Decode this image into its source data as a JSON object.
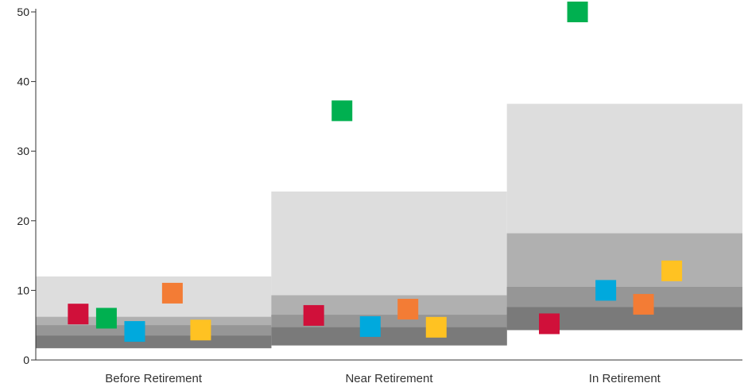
{
  "chart_data": {
    "type": "scatter",
    "categories": [
      "Before Retirement",
      "Near Retirement",
      "In Retirement"
    ],
    "ylim": [
      0,
      50
    ],
    "y_ticks": [
      0,
      10,
      20,
      30,
      40,
      50
    ],
    "grid": false,
    "legend": "none",
    "bands": [
      {
        "category": "Before Retirement",
        "levels": [
          1.7,
          3.5,
          5.0,
          6.2,
          12.0
        ]
      },
      {
        "category": "Near Retirement",
        "levels": [
          2.1,
          4.7,
          6.5,
          9.3,
          24.2
        ]
      },
      {
        "category": "In Retirement",
        "levels": [
          4.3,
          7.6,
          10.5,
          18.2,
          36.8
        ]
      }
    ],
    "band_colors": [
      "#7a7a7a",
      "#969696",
      "#b0b0b0",
      "#dddddd"
    ],
    "series": [
      {
        "color": "#d0103a",
        "values": [
          6.6,
          6.4,
          5.2
        ]
      },
      {
        "color": "#00b050",
        "values": [
          6.0,
          35.8,
          50.0
        ]
      },
      {
        "color": "#00a9dd",
        "values": [
          4.1,
          4.8,
          10.0
        ]
      },
      {
        "color": "#f37c35",
        "values": [
          9.6,
          7.3,
          8.0
        ]
      },
      {
        "color": "#ffc222",
        "values": [
          4.3,
          4.7,
          12.8
        ]
      }
    ]
  }
}
